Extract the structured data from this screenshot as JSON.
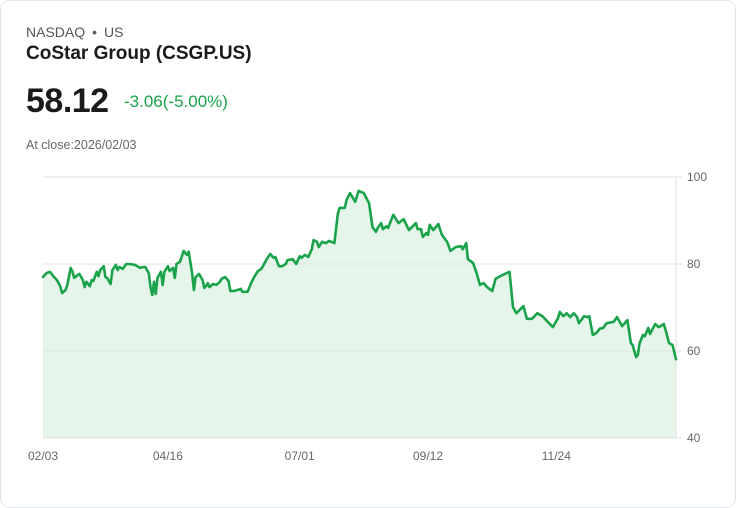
{
  "header": {
    "exchange": "NASDAQ",
    "separator": "•",
    "market": "US",
    "title": "CoStar Group (CSGP.US)",
    "price": "58.12",
    "change": "-3.06(-5.00%)",
    "close_label": "At close:2026/02/03"
  },
  "colors": {
    "line": "#1aa34a",
    "fill": "#e6f5ea",
    "grid": "#e2e2e2"
  },
  "chart_data": {
    "type": "area",
    "title": "CoStar Group (CSGP.US)",
    "xlabel": "",
    "ylabel": "",
    "x_unit": "days since 02/03",
    "xlim": [
      0,
      365
    ],
    "ylim": [
      40,
      100
    ],
    "y_ticks": [
      100,
      80,
      60,
      40
    ],
    "y_axis_position": "right",
    "x_ticks": [
      {
        "day": 0,
        "label": "02/03"
      },
      {
        "day": 72,
        "label": "04/16"
      },
      {
        "day": 148,
        "label": "07/01"
      },
      {
        "day": 222,
        "label": "09/12"
      },
      {
        "day": 296,
        "label": "11/24"
      }
    ],
    "grid": true,
    "series": [
      {
        "name": "CSGP.US",
        "points": [
          [
            0,
            77.0
          ],
          [
            2,
            77.9
          ],
          [
            4,
            78.2
          ],
          [
            6,
            77.2
          ],
          [
            8,
            76.3
          ],
          [
            10,
            74.9
          ],
          [
            11,
            73.3
          ],
          [
            13,
            74.0
          ],
          [
            14,
            75.2
          ],
          [
            16,
            79.1
          ],
          [
            17,
            78.2
          ],
          [
            18,
            76.8
          ],
          [
            20,
            77.5
          ],
          [
            21,
            77.7
          ],
          [
            23,
            76.3
          ],
          [
            24,
            74.7
          ],
          [
            25,
            75.9
          ],
          [
            27,
            74.9
          ],
          [
            28,
            76.3
          ],
          [
            29,
            76.1
          ],
          [
            31,
            78.2
          ],
          [
            32,
            77.2
          ],
          [
            33,
            78.6
          ],
          [
            35,
            79.5
          ],
          [
            36,
            77.0
          ],
          [
            37,
            76.8
          ],
          [
            39,
            75.4
          ],
          [
            40,
            78.6
          ],
          [
            42,
            79.8
          ],
          [
            43,
            78.6
          ],
          [
            44,
            79.3
          ],
          [
            46,
            78.9
          ],
          [
            48,
            80.0
          ],
          [
            50,
            80.0
          ],
          [
            53,
            79.8
          ],
          [
            56,
            79.1
          ],
          [
            58,
            79.3
          ],
          [
            59,
            79.3
          ],
          [
            61,
            77.9
          ],
          [
            62,
            74.7
          ],
          [
            63,
            72.9
          ],
          [
            64,
            75.9
          ],
          [
            65,
            73.1
          ],
          [
            66,
            76.8
          ],
          [
            68,
            78.2
          ],
          [
            69,
            75.2
          ],
          [
            70,
            78.2
          ],
          [
            72,
            79.5
          ],
          [
            73,
            78.4
          ],
          [
            75,
            79.1
          ],
          [
            76,
            76.8
          ],
          [
            77,
            80.0
          ],
          [
            79,
            80.5
          ],
          [
            80,
            81.6
          ],
          [
            81,
            83.0
          ],
          [
            83,
            82.1
          ],
          [
            84,
            82.8
          ],
          [
            86,
            77.9
          ],
          [
            87,
            74.0
          ],
          [
            88,
            77.0
          ],
          [
            90,
            77.7
          ],
          [
            92,
            76.3
          ],
          [
            93,
            74.5
          ],
          [
            94,
            74.9
          ],
          [
            95,
            75.6
          ],
          [
            96,
            74.7
          ],
          [
            98,
            75.4
          ],
          [
            100,
            75.2
          ],
          [
            102,
            75.9
          ],
          [
            103,
            76.6
          ],
          [
            105,
            77.0
          ],
          [
            107,
            76.1
          ],
          [
            108,
            73.8
          ],
          [
            110,
            73.8
          ],
          [
            112,
            74.0
          ],
          [
            114,
            74.3
          ],
          [
            115,
            73.6
          ],
          [
            118,
            73.6
          ],
          [
            120,
            75.6
          ],
          [
            122,
            77.2
          ],
          [
            124,
            78.4
          ],
          [
            126,
            78.9
          ],
          [
            129,
            81.1
          ],
          [
            131,
            82.3
          ],
          [
            133,
            81.4
          ],
          [
            134,
            81.6
          ],
          [
            136,
            79.5
          ],
          [
            138,
            79.5
          ],
          [
            140,
            80.0
          ],
          [
            141,
            80.9
          ],
          [
            144,
            81.1
          ],
          [
            146,
            80.0
          ],
          [
            148,
            81.8
          ],
          [
            149,
            81.4
          ],
          [
            151,
            82.1
          ],
          [
            153,
            81.6
          ],
          [
            155,
            83.4
          ],
          [
            156,
            85.5
          ],
          [
            158,
            85.1
          ],
          [
            159,
            83.9
          ],
          [
            161,
            85.1
          ],
          [
            163,
            84.8
          ],
          [
            165,
            85.3
          ],
          [
            168,
            84.8
          ],
          [
            170,
            91.5
          ],
          [
            171,
            92.9
          ],
          [
            174,
            92.9
          ],
          [
            175,
            94.7
          ],
          [
            177,
            96.3
          ],
          [
            180,
            94.3
          ],
          [
            182,
            96.8
          ],
          [
            185,
            96.3
          ],
          [
            188,
            94.0
          ],
          [
            190,
            88.5
          ],
          [
            192,
            87.4
          ],
          [
            193,
            88.3
          ],
          [
            195,
            89.4
          ],
          [
            196,
            88.0
          ],
          [
            198,
            88.7
          ],
          [
            199,
            88.3
          ],
          [
            202,
            91.3
          ],
          [
            205,
            89.4
          ],
          [
            208,
            90.3
          ],
          [
            211,
            87.8
          ],
          [
            215,
            89.4
          ],
          [
            216,
            88.0
          ],
          [
            218,
            88.0
          ],
          [
            219,
            86.2
          ],
          [
            221,
            87.1
          ],
          [
            222,
            86.7
          ],
          [
            223,
            89.0
          ],
          [
            225,
            87.8
          ],
          [
            228,
            89.2
          ],
          [
            230,
            86.7
          ],
          [
            233,
            85.1
          ],
          [
            235,
            83.0
          ],
          [
            238,
            83.9
          ],
          [
            241,
            84.1
          ],
          [
            242,
            83.4
          ],
          [
            244,
            84.8
          ],
          [
            245,
            81.1
          ],
          [
            248,
            80.2
          ],
          [
            250,
            77.9
          ],
          [
            252,
            75.2
          ],
          [
            254,
            75.6
          ],
          [
            256,
            74.7
          ],
          [
            259,
            73.8
          ],
          [
            261,
            76.6
          ],
          [
            265,
            77.5
          ],
          [
            269,
            78.2
          ],
          [
            271,
            70.1
          ],
          [
            273,
            68.7
          ],
          [
            277,
            70.3
          ],
          [
            279,
            67.4
          ],
          [
            282,
            67.4
          ],
          [
            285,
            68.7
          ],
          [
            288,
            68.0
          ],
          [
            291,
            66.7
          ],
          [
            294,
            65.5
          ],
          [
            297,
            67.6
          ],
          [
            298,
            69.0
          ],
          [
            300,
            68.0
          ],
          [
            302,
            68.7
          ],
          [
            304,
            67.8
          ],
          [
            306,
            68.7
          ],
          [
            308,
            67.8
          ],
          [
            309,
            66.4
          ],
          [
            312,
            68.0
          ],
          [
            314,
            67.8
          ],
          [
            315,
            68.0
          ],
          [
            317,
            63.7
          ],
          [
            319,
            64.1
          ],
          [
            321,
            65.1
          ],
          [
            323,
            65.3
          ],
          [
            325,
            66.4
          ],
          [
            329,
            66.7
          ],
          [
            331,
            67.8
          ],
          [
            334,
            65.7
          ],
          [
            337,
            67.1
          ],
          [
            339,
            61.8
          ],
          [
            340,
            61.4
          ],
          [
            342,
            58.6
          ],
          [
            343,
            59.1
          ],
          [
            344,
            61.8
          ],
          [
            346,
            63.7
          ],
          [
            347,
            63.4
          ],
          [
            349,
            65.3
          ],
          [
            350,
            63.9
          ],
          [
            353,
            66.2
          ],
          [
            355,
            65.5
          ],
          [
            358,
            66.2
          ],
          [
            359,
            64.8
          ],
          [
            361,
            61.8
          ],
          [
            363,
            61.4
          ],
          [
            365,
            58.12
          ]
        ]
      }
    ]
  }
}
